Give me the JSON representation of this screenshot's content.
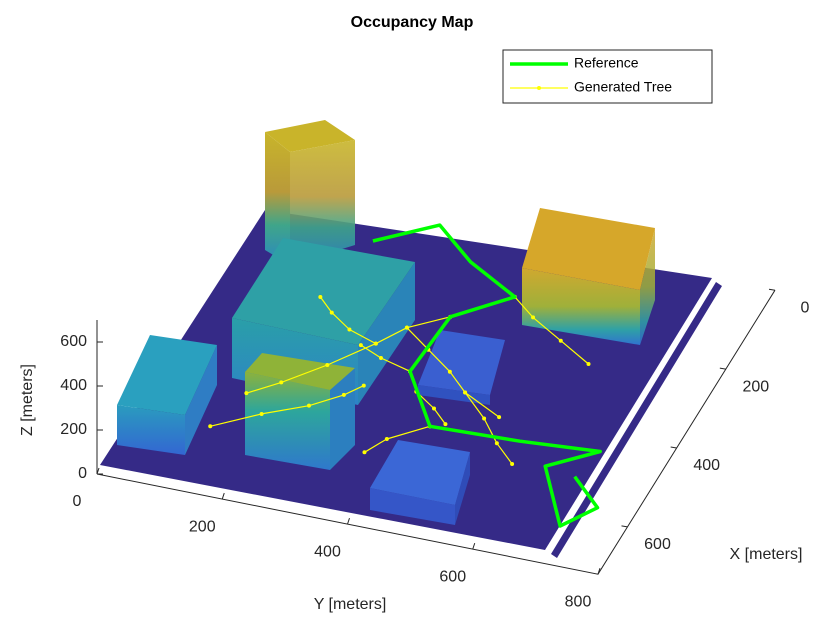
{
  "chart_data": {
    "type": "line3d",
    "title": "Occupancy Map",
    "xlabel": "X [meters]",
    "ylabel": "Y [meters]",
    "zlabel": "Z [meters]",
    "xlim": [
      0,
      720
    ],
    "ylim": [
      0,
      800
    ],
    "zlim": [
      0,
      700
    ],
    "xticks": [
      0,
      200,
      400,
      600
    ],
    "yticks": [
      0,
      200,
      400,
      600,
      800
    ],
    "zticks": [
      0,
      200,
      400,
      600
    ],
    "legend": "top-right",
    "series": [
      {
        "name": "Reference",
        "color": "#00ff00",
        "x": [
          120,
          54,
          123,
          182,
          256,
          397,
          512,
          505,
          492,
          550,
          678,
          620,
          560
        ],
        "y": [
          205,
          286,
          362,
          456,
          382,
          373,
          450,
          591,
          714,
          649,
          723,
          760,
          700
        ],
        "z": [
          100,
          100,
          100,
          100,
          100,
          100,
          100,
          100,
          100,
          100,
          100,
          100,
          100
        ]
      },
      {
        "name": "Generated Tree",
        "color": "#ffff00",
        "x": [
          256,
          300,
          350,
          420,
          480,
          520,
          null,
          350,
          330,
          300,
          270,
          null,
          397,
          440,
          470,
          500,
          null,
          397,
          380,
          360,
          null,
          512,
          560,
          600,
          null,
          300,
          340,
          380,
          420,
          460,
          null,
          182,
          220,
          260,
          300,
          null,
          420,
          470,
          520,
          560,
          null,
          611,
          560,
          520,
          480,
          450
        ],
        "y": [
          382,
          330,
          300,
          250,
          200,
          160,
          null,
          300,
          250,
          210,
          180,
          null,
          373,
          400,
          440,
          470,
          null,
          373,
          320,
          280,
          null,
          450,
          400,
          380,
          null,
          330,
          380,
          430,
          470,
          540,
          null,
          456,
          500,
          560,
          620,
          null,
          470,
          520,
          560,
          600,
          null,
          138,
          200,
          260,
          300,
          320
        ],
        "z": [
          100,
          100,
          100,
          100,
          100,
          100,
          null,
          100,
          100,
          100,
          100,
          null,
          100,
          100,
          100,
          100,
          null,
          100,
          100,
          100,
          null,
          100,
          100,
          100,
          null,
          100,
          100,
          100,
          100,
          100,
          null,
          100,
          100,
          100,
          100,
          null,
          100,
          100,
          100,
          100,
          null,
          100,
          100,
          100,
          100,
          100
        ]
      }
    ]
  }
}
